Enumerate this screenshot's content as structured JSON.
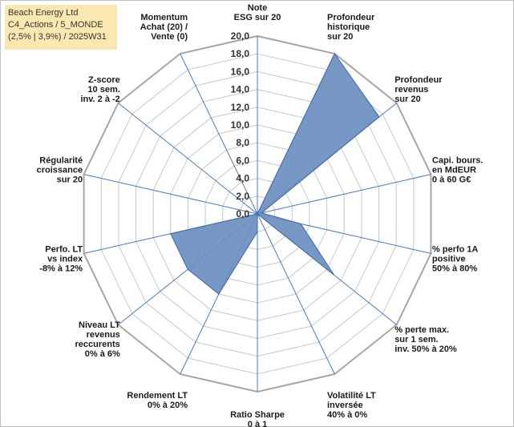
{
  "title_lines": [
    "Beach Energy Ltd",
    "C4_Actions / 5_MONDE",
    "(2,5% | 3,9%) / 2025W31"
  ],
  "chart_data": {
    "type": "radar",
    "rmin": 0,
    "rmax": 20,
    "ticks": [
      "0,0",
      "2,0",
      "4,0",
      "6,0",
      "8,0",
      "10,0",
      "12,0",
      "14,0",
      "16,0",
      "18,0",
      "20,0"
    ],
    "axes": [
      [
        "Note",
        "ESG sur 20"
      ],
      [
        "Profondeur",
        "historique",
        "sur 20"
      ],
      [
        "Profondeur",
        "revenus",
        "sur 20"
      ],
      [
        "Capi. bours.",
        "en MdEUR",
        "0 à 60 G€"
      ],
      [
        "% perfo 1A",
        "positive",
        "50% à 80%"
      ],
      [
        "% perte max.",
        "sur 1 sem.",
        "inv. 50% à 20%"
      ],
      [
        "Volatilité LT",
        "inversée",
        "40% à 0%"
      ],
      [
        "Ratio Sharpe",
        "0 à 1"
      ],
      [
        "Rendement LT",
        "0% à 20%"
      ],
      [
        "Niveau LT",
        "revenus",
        "reccurents",
        "0% à 6%"
      ],
      [
        "Perfo. LT",
        "vs index",
        "-8% à 12%"
      ],
      [
        "Régularité",
        "croissance",
        "sur 20"
      ],
      [
        "Z-score",
        "10 sem.",
        "inv. 2 à -2"
      ],
      [
        "Momentum",
        "Achat (20) /",
        "Vente (0)"
      ]
    ],
    "series": [
      {
        "values": [
          0,
          20,
          17.5,
          0.5,
          5,
          11,
          0,
          2,
          10,
          10,
          10,
          0,
          0,
          0
        ]
      }
    ],
    "colors": {
      "fill": "#6b8fbf",
      "stroke": "#3b68a8",
      "spoke": "#4a7cc0",
      "ring": "#c8c8c8"
    },
    "grid": true
  }
}
